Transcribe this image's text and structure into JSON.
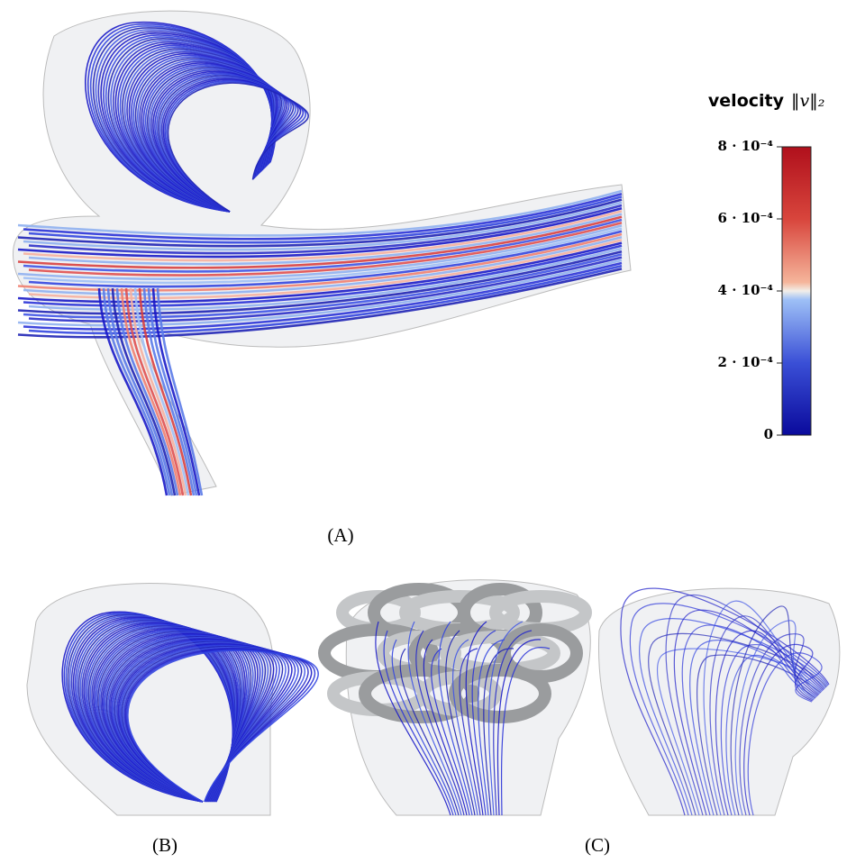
{
  "panels": {
    "a": {
      "label": "(A)"
    },
    "b": {
      "label": "(B)"
    },
    "c": {
      "label": "(C)"
    }
  },
  "colorbar": {
    "title_word": "velocity",
    "title_symbol": "‖v‖₂",
    "lim": [
      0,
      0.0008
    ],
    "ticks": [
      0,
      {
        "value": 0.0002,
        "label": "2 · 10⁻⁴"
      },
      {
        "value": 0.0004,
        "label": "4 · 10⁻⁴"
      },
      {
        "value": 0.0006,
        "label": "6 · 10⁻⁴"
      },
      {
        "value": 0.0008,
        "label": "8 · 10⁻⁴"
      }
    ]
  }
}
